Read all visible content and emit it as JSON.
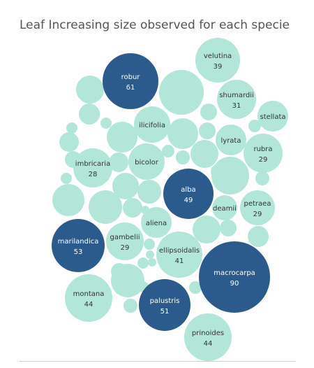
{
  "chart_data": {
    "type": "bubble",
    "title": "Leaf Increasing size observed for each specie",
    "colors": {
      "highlight": "#2b5a8c",
      "base": "#b2e6d9",
      "light_text": "#ffffff",
      "dark_text": "#333333"
    },
    "threshold_highlight": 49,
    "labeled": [
      {
        "name": "velutina",
        "value": 39
      },
      {
        "name": "robur",
        "value": 61
      },
      {
        "name": "shumardii",
        "value": 31
      },
      {
        "name": "stellata",
        "value": null
      },
      {
        "name": "ilicifolia",
        "value": null
      },
      {
        "name": "lyrata",
        "value": null
      },
      {
        "name": "rubra",
        "value": 29
      },
      {
        "name": "bicolor",
        "value": null
      },
      {
        "name": "imbricaria",
        "value": 28
      },
      {
        "name": "alba",
        "value": 49
      },
      {
        "name": "deamii",
        "value": null
      },
      {
        "name": "petraea",
        "value": 29
      },
      {
        "name": "aliena",
        "value": null
      },
      {
        "name": "marilandica",
        "value": 53
      },
      {
        "name": "gambelii",
        "value": 29
      },
      {
        "name": "ellipsoidalis",
        "value": 41
      },
      {
        "name": "macrocarpa",
        "value": 90
      },
      {
        "name": "montana",
        "value": 44
      },
      {
        "name": "palustris",
        "value": 51
      },
      {
        "name": "prinoides",
        "value": 44
      }
    ]
  }
}
